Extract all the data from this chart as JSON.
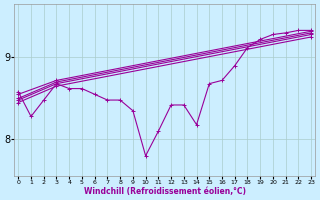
{
  "xlabel": "Windchill (Refroidissement éolien,°C)",
  "bg_color": "#cceeff",
  "line_color": "#990099",
  "grid_color": "#aacccc",
  "straight_lines": [
    [
      [
        0,
        3,
        23
      ],
      [
        8.55,
        8.72,
        9.32
      ]
    ],
    [
      [
        0,
        3,
        23
      ],
      [
        8.5,
        8.7,
        9.3
      ]
    ],
    [
      [
        0,
        3,
        23
      ],
      [
        8.48,
        8.68,
        9.28
      ]
    ],
    [
      [
        0,
        3,
        23
      ],
      [
        8.45,
        8.65,
        9.25
      ]
    ]
  ],
  "zigzag_x": [
    0,
    1,
    2,
    3,
    4,
    5,
    6,
    7,
    8,
    9,
    10,
    11,
    12,
    13,
    14,
    15,
    16,
    17,
    18,
    19,
    20,
    21,
    22,
    23
  ],
  "zigzag_y": [
    8.58,
    8.28,
    8.48,
    8.68,
    8.62,
    8.62,
    8.55,
    8.48,
    8.48,
    8.35,
    7.8,
    8.1,
    8.42,
    8.42,
    8.18,
    8.68,
    8.72,
    8.9,
    9.12,
    9.22,
    9.28,
    9.3,
    9.33,
    9.33
  ],
  "x_ticks": [
    0,
    1,
    2,
    3,
    4,
    5,
    6,
    7,
    8,
    9,
    10,
    11,
    12,
    13,
    14,
    15,
    16,
    17,
    18,
    19,
    20,
    21,
    22,
    23
  ],
  "y_ticks": [
    8,
    9
  ],
  "xlim": [
    -0.3,
    23.3
  ],
  "ylim": [
    7.55,
    9.65
  ]
}
